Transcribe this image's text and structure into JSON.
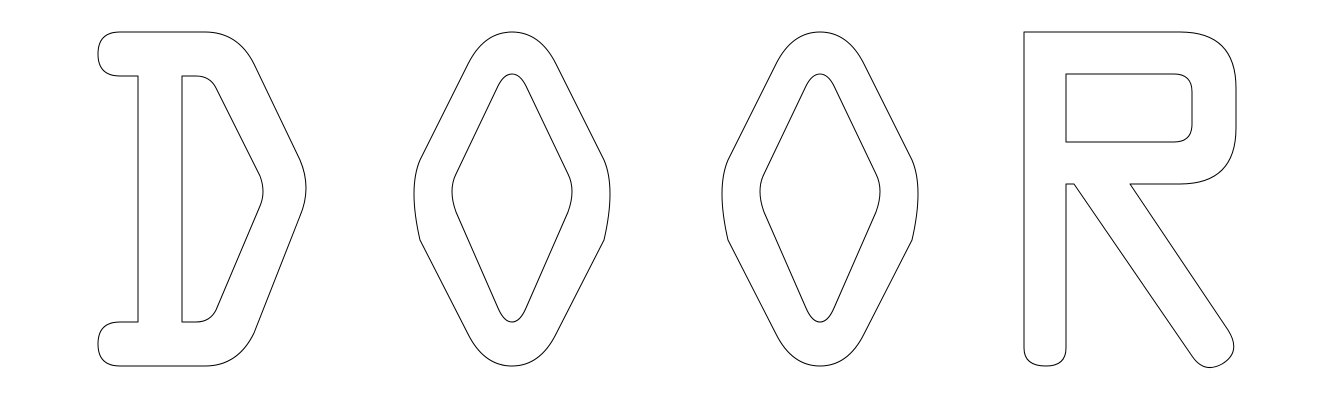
{
  "logo": {
    "text": "DOOR",
    "letters": [
      "D",
      "O",
      "O",
      "R"
    ],
    "fill_color": "#ffffff",
    "outline_color": "#000000",
    "background_color": "#ffffff"
  }
}
